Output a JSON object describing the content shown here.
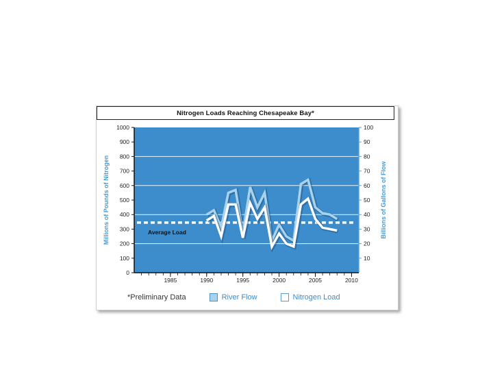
{
  "chart_data": {
    "type": "line",
    "title": "Nitrogen Loads Reaching Chesapeake Bay*",
    "ylabel_left": "Millions of Pounds of Nitrogen",
    "ylabel_right": "Billions of Gallons of Flow",
    "xlim": [
      1980,
      2011
    ],
    "ylim_left": [
      0,
      1000
    ],
    "ylim_right": [
      0,
      100
    ],
    "x_ticks": [
      "1985",
      "1990",
      "1995",
      "2000",
      "2005",
      "2010"
    ],
    "y_left_ticks": [
      "0",
      "100",
      "200",
      "300",
      "400",
      "500",
      "600",
      "700",
      "800",
      "900",
      "1000"
    ],
    "y_right_ticks": [
      "10",
      "20",
      "30",
      "40",
      "50",
      "60",
      "70",
      "80",
      "90",
      "100"
    ],
    "grid": true,
    "average_label": "Average Load",
    "average_value": 345,
    "x": [
      1990,
      1991,
      1992,
      1993,
      1994,
      1995,
      1996,
      1997,
      1998,
      1999,
      2000,
      2001,
      2002,
      2003,
      2004,
      2005,
      2006,
      2007,
      2008
    ],
    "series": [
      {
        "name": "River Flow",
        "axis": "right",
        "color": "#a9d3ec",
        "values": [
          40,
          43,
          31,
          55,
          57,
          27,
          59,
          45,
          55,
          22,
          33,
          25,
          22,
          61,
          64,
          45,
          41,
          40,
          37
        ]
      },
      {
        "name": "Nitrogen Load",
        "axis": "left",
        "color": "#ffffff",
        "values": [
          360,
          390,
          250,
          470,
          470,
          240,
          480,
          370,
          450,
          180,
          270,
          200,
          180,
          470,
          510,
          370,
          310,
          300,
          290
        ]
      }
    ]
  },
  "legend": {
    "note": "*Preliminary Data",
    "river_flow": "River Flow",
    "nitrogen_load": "Nitrogen Load"
  },
  "colors": {
    "plot_background": "#3d8ccb",
    "axis_label": "#4a9ad4",
    "average_line": "#ffffff"
  }
}
